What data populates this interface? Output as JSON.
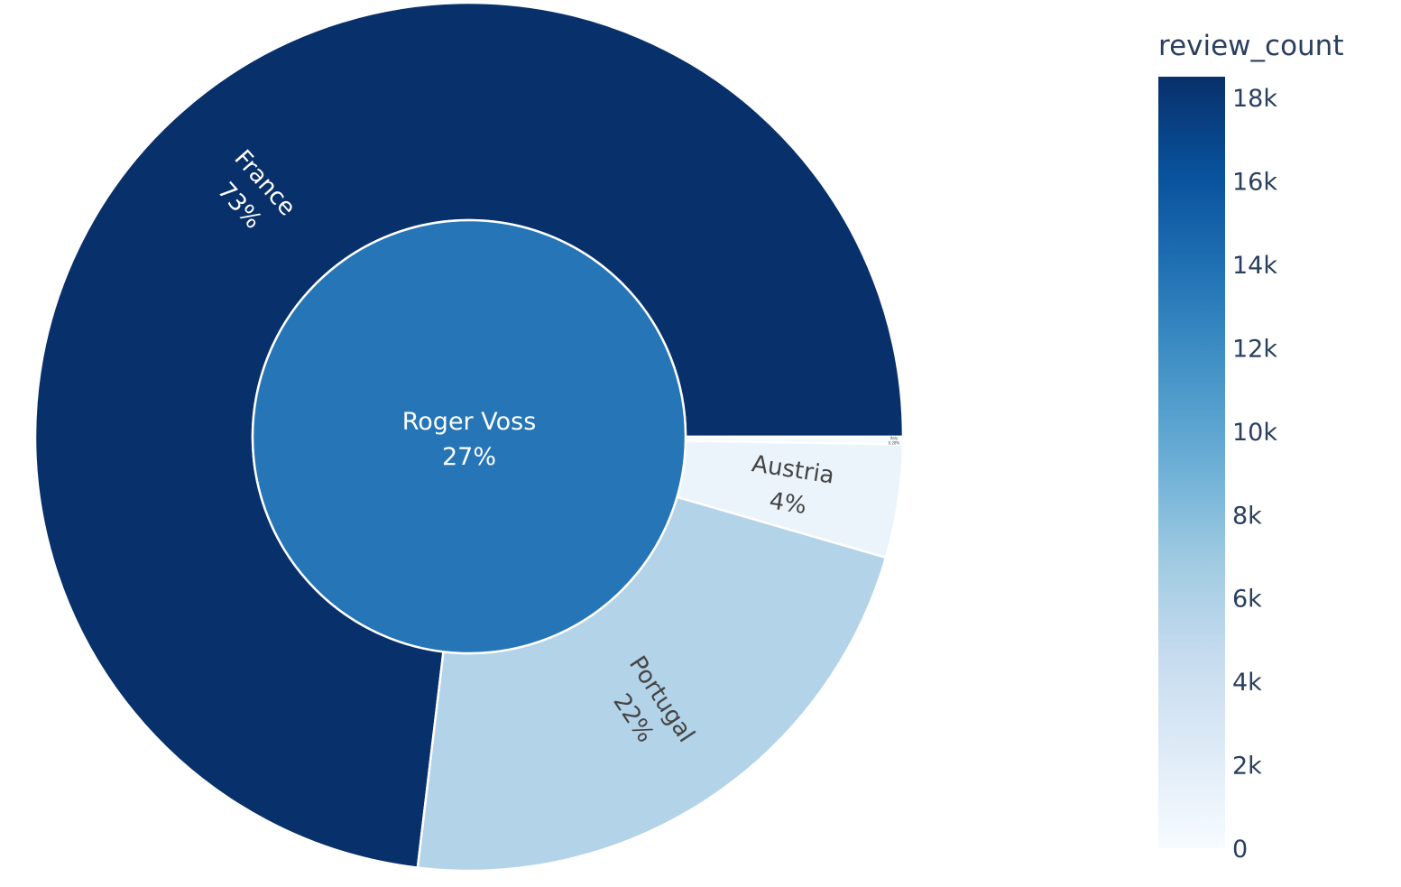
{
  "chart_data": {
    "type": "sunburst",
    "colorbar": {
      "title": "review_count",
      "tick_labels": [
        "0",
        "2k",
        "4k",
        "6k",
        "8k",
        "10k",
        "12k",
        "14k",
        "16k",
        "18k"
      ],
      "tick_values": [
        0,
        2000,
        4000,
        6000,
        8000,
        10000,
        12000,
        14000,
        16000,
        18000
      ],
      "range": [
        0,
        18500
      ],
      "colorscale": "Blues"
    },
    "root": {
      "name": "Roger Voss",
      "percent_label": "27%",
      "value": 25514,
      "color_value": 13600
    },
    "children": [
      {
        "name": "France",
        "percent_label": "73%",
        "value": 18600,
        "color_value": 18600
      },
      {
        "name": "Portugal",
        "percent_label": "22%",
        "value": 5700,
        "color_value": 5700
      },
      {
        "name": "Austria",
        "percent_label": "4%",
        "value": 1070,
        "color_value": 1070
      },
      {
        "name": "Italy",
        "percent_label": "0.28%",
        "value": 72,
        "color_value": 72
      }
    ]
  }
}
